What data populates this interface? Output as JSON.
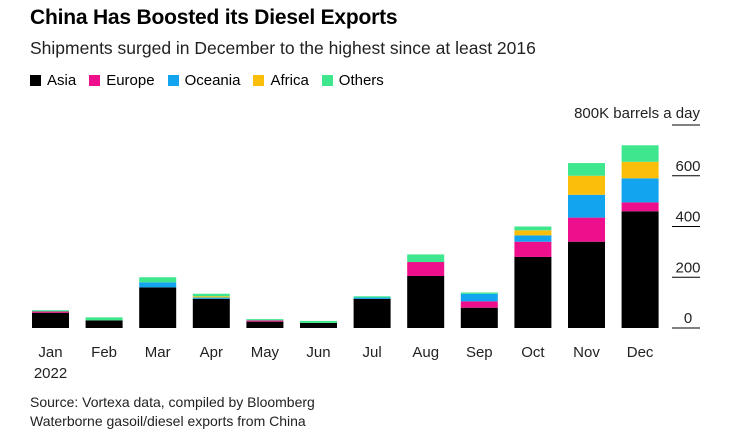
{
  "title": "China Has Boosted its Diesel Exports",
  "subtitle": "Shipments surged in December to the highest since at least 2016",
  "source": "Source: Vortexa data, compiled by Bloomberg",
  "note": "Waterborne gasoil/diesel exports from China",
  "unit_label": "800K barrels a day",
  "year_label": "2022",
  "colors": {
    "Asia": "#000000",
    "Europe": "#ee0f8c",
    "Oceania": "#13a4f0",
    "Africa": "#fbbf0b",
    "Others": "#3ee78e"
  },
  "chart_data": {
    "type": "bar",
    "stacked": true,
    "title": "China Has Boosted its Diesel Exports",
    "ylabel": "800K barrels a day",
    "ylim": [
      0,
      800
    ],
    "yticks": [
      0,
      200,
      400,
      600
    ],
    "categories": [
      "Jan",
      "Feb",
      "Mar",
      "Apr",
      "May",
      "Jun",
      "Jul",
      "Aug",
      "Sep",
      "Oct",
      "Nov",
      "Dec"
    ],
    "series": [
      {
        "name": "Asia",
        "values": [
          60,
          30,
          160,
          115,
          25,
          20,
          115,
          205,
          80,
          280,
          340,
          460
        ]
      },
      {
        "name": "Europe",
        "values": [
          5,
          0,
          0,
          0,
          5,
          0,
          0,
          55,
          25,
          60,
          95,
          35
        ]
      },
      {
        "name": "Oceania",
        "values": [
          0,
          0,
          20,
          5,
          0,
          0,
          5,
          0,
          30,
          25,
          90,
          95
        ]
      },
      {
        "name": "Africa",
        "values": [
          0,
          0,
          0,
          5,
          0,
          0,
          0,
          0,
          0,
          20,
          75,
          65
        ]
      },
      {
        "name": "Others",
        "values": [
          5,
          12,
          20,
          10,
          5,
          8,
          5,
          30,
          5,
          15,
          50,
          65
        ]
      }
    ]
  }
}
